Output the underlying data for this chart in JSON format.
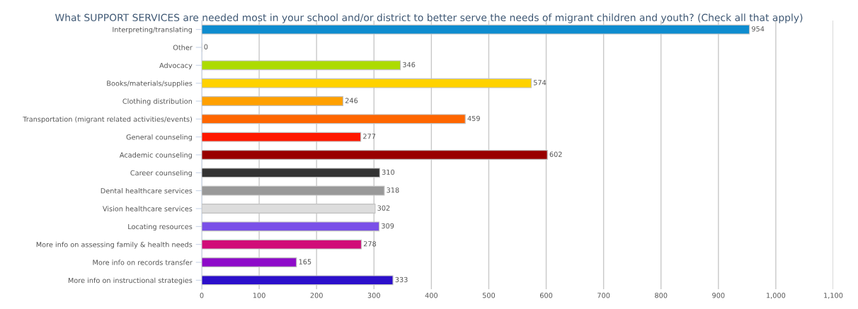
{
  "chart_data": {
    "type": "bar",
    "orientation": "horizontal",
    "title": "What SUPPORT SERVICES are needed most in your school and/or district to better serve the needs of migrant children and youth? (Check all that apply)",
    "categories": [
      "Interpreting/translating",
      "Other",
      "Advocacy",
      "Books/materials/supplies",
      "Clothing distribution",
      "Transportation (migrant related activities/events)",
      "General counseling",
      "Academic counseling",
      "Career counseling",
      "Dental healthcare services",
      "Vision healthcare services",
      "Locating resources",
      "More info on assessing family & health needs",
      "More info on records transfer",
      "More info on instructional strategies"
    ],
    "values": [
      954,
      0,
      346,
      574,
      246,
      459,
      277,
      602,
      310,
      318,
      302,
      309,
      278,
      165,
      333
    ],
    "colors": [
      "#0e8ccf",
      "#c8c8c8",
      "#addb00",
      "#ffd200",
      "#ffa000",
      "#ff6600",
      "#ff1800",
      "#990000",
      "#333333",
      "#999999",
      "#dddddd",
      "#7a50e8",
      "#d10c78",
      "#8e0bc9",
      "#2c0fcb"
    ],
    "xlim": [
      0,
      1100
    ],
    "xticks": [
      0,
      100,
      200,
      300,
      400,
      500,
      600,
      700,
      800,
      900,
      {
        "value": 1000,
        "label": "1,000"
      },
      {
        "value": 1100,
        "label": "1,100"
      }
    ],
    "grid": "x",
    "data_labels": true
  }
}
